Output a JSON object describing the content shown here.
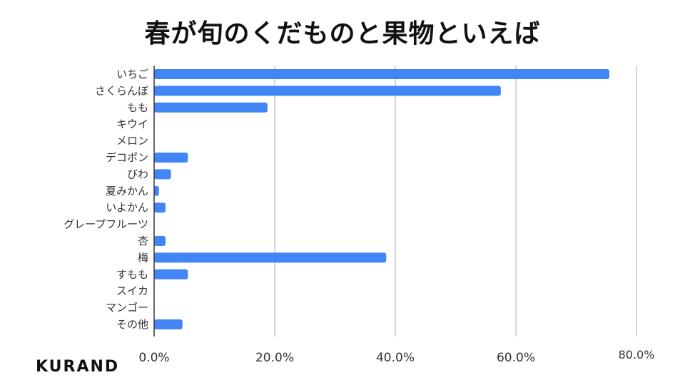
{
  "chart_data": {
    "type": "bar",
    "orientation": "horizontal",
    "title": "春が旬のくだものと果物といえば",
    "categories": [
      "いちご",
      "さくらんぼ",
      "もも",
      "キウイ",
      "メロン",
      "デコポン",
      "びわ",
      "夏みかん",
      "いよかん",
      "グレープフルーツ",
      "杏",
      "梅",
      "すもも",
      "スイカ",
      "マンゴー",
      "その他"
    ],
    "values": [
      75.5,
      57.5,
      18.8,
      0,
      0,
      5.6,
      2.8,
      0.8,
      1.9,
      0,
      1.9,
      38.5,
      5.6,
      0,
      0,
      4.7
    ],
    "xlim": [
      0,
      80
    ],
    "xticks": [
      "0.0%",
      "20.0%",
      "40.0%",
      "60.0%",
      "80.0%"
    ],
    "xlabel": "",
    "ylabel": "",
    "grid": true,
    "bar_color": "#4285f4"
  },
  "brand": "KURAND"
}
